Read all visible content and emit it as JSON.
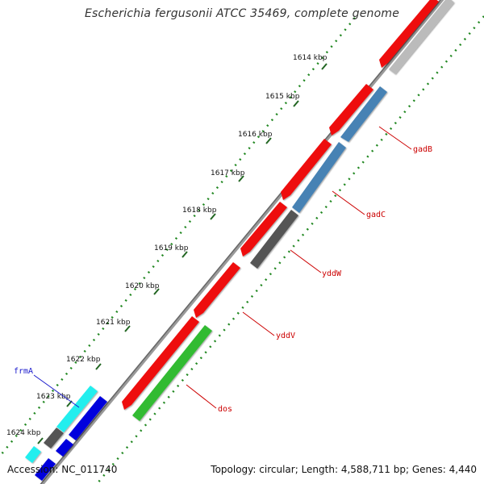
{
  "title": "Escherichia fergusonii ATCC 35469, complete genome",
  "footer": {
    "accession_label": "Accession:",
    "accession": "NC_011740",
    "topology_label": "Topology:",
    "topology": "circular",
    "length_label": "Length:",
    "length": "4,588,711 bp",
    "genes_label": "Genes:",
    "genes": "4,440"
  },
  "ticks": [
    {
      "label": "1614 kbp"
    },
    {
      "label": "1615 kbp"
    },
    {
      "label": "1616 kbp"
    },
    {
      "label": "1617 kbp"
    },
    {
      "label": "1618 kbp"
    },
    {
      "label": "1619 kbp"
    },
    {
      "label": "1620 kbp"
    },
    {
      "label": "1621 kbp"
    },
    {
      "label": "1622 kbp"
    },
    {
      "label": "1623 kbp"
    },
    {
      "label": "1624 kbp"
    }
  ],
  "gene_labels": [
    {
      "name": "gadB",
      "color": "#cc0000"
    },
    {
      "name": "gadC",
      "color": "#cc0000"
    },
    {
      "name": "yddW",
      "color": "#cc0000"
    },
    {
      "name": "yddV",
      "color": "#cc0000"
    },
    {
      "name": "dos",
      "color": "#cc0000"
    },
    {
      "name": "frmA",
      "color": "#1a1acc"
    }
  ],
  "colors": {
    "cds": "#ee1111",
    "gene_blue": "#4682b4",
    "gene_gray": "#555555",
    "gene_green": "#33bb33",
    "gene_cyan": "#22eeee",
    "gene_navy": "#0000dd",
    "gene_light_gray": "#bbbbbb",
    "backbone": "#888888",
    "tick": "#228822"
  }
}
